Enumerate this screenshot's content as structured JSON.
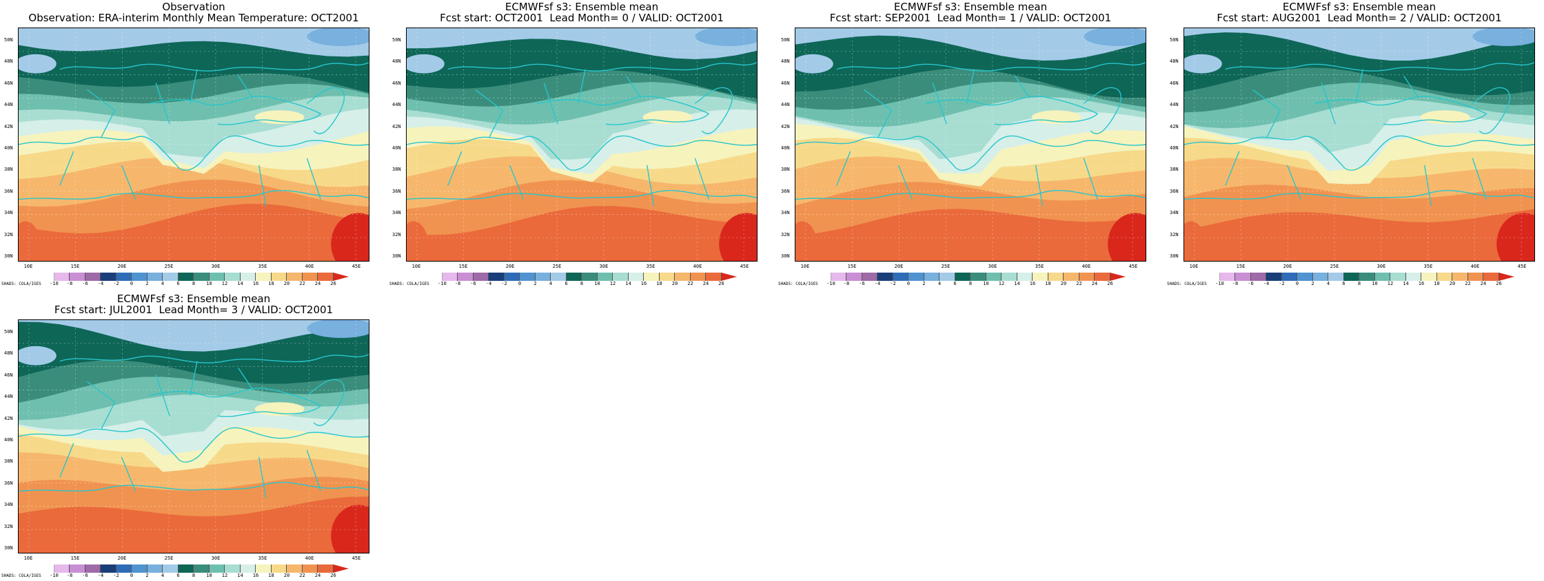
{
  "figure": {
    "colorbar": {
      "levels": [
        "-10",
        "-8",
        "-6",
        "-4",
        "-2",
        "0",
        "2",
        "4",
        "6",
        "8",
        "10",
        "12",
        "14",
        "16",
        "18",
        "20",
        "22",
        "24",
        "26"
      ],
      "colors": [
        "#ffffff",
        "#e6b8ec",
        "#c98ed4",
        "#9e6aa8",
        "#1a3e7a",
        "#2f6cb8",
        "#4f93d0",
        "#78b0de",
        "#a3cbe8",
        "#0e6657",
        "#3b8d7b",
        "#6fbfae",
        "#a8ddd2",
        "#d6efe9",
        "#f6f3bd",
        "#f7d98a",
        "#f6b76c",
        "#f19350",
        "#ea6a3b",
        "#d9271c"
      ],
      "credit": "SHADS: COLA/IGES"
    },
    "axes": {
      "y_labels": [
        "50N",
        "48N",
        "46N",
        "44N",
        "42N",
        "40N",
        "38N",
        "36N",
        "34N",
        "32N",
        "30N"
      ],
      "x_labels": [
        "10E",
        "15E",
        "20E",
        "25E",
        "30E",
        "35E",
        "40E",
        "45E"
      ]
    },
    "panels": [
      {
        "title1": "Observation",
        "title2": "Observation: ERA-interim Monthly Mean Temperature: OCT2001"
      },
      {
        "title1": "ECMWFsf s3: Ensemble mean",
        "title2": "Fcst start: OCT2001  Lead Month= 0 / VALID: OCT2001"
      },
      {
        "title1": "ECMWFsf s3: Ensemble mean",
        "title2": "Fcst start: SEP2001  Lead Month= 1 / VALID: OCT2001"
      },
      {
        "title1": "ECMWFsf s3: Ensemble mean",
        "title2": "Fcst start: AUG2001  Lead Month= 2 / VALID: OCT2001"
      },
      {
        "title1": "ECMWFsf s3: Ensemble mean",
        "title2": "Fcst start: JUL2001  Lead Month= 3 / VALID: OCT2001"
      }
    ]
  }
}
